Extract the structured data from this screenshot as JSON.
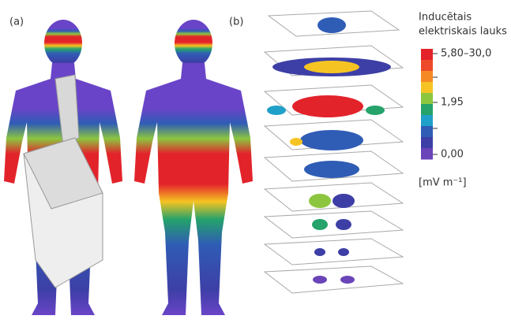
{
  "panels": {
    "a": "(a)",
    "b": "(b)"
  },
  "legend": {
    "title": [
      "Inducētais",
      "elektriskais lauks"
    ],
    "colors": [
      "#e3232a",
      "#ee4a2a",
      "#f58a24",
      "#f5c423",
      "#8cc63f",
      "#25a36a",
      "#1fa0c8",
      "#2f5cb5",
      "#3d3fa6",
      "#6a44b8"
    ],
    "ticks": [
      "5,80–30,0",
      "1,95",
      "0,00"
    ],
    "unit": "[mV m⁻¹]"
  }
}
